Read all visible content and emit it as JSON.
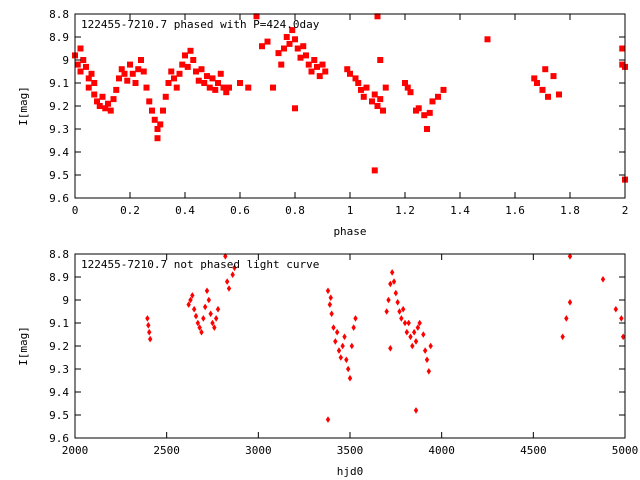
{
  "chart_data": [
    {
      "type": "scatter",
      "title": "122455-7210.7 phased with P=424.0day",
      "xlabel": "phase",
      "ylabel": "I[mag]",
      "xlim": [
        0,
        2
      ],
      "ylim": [
        9.6,
        8.8
      ],
      "y_inverted": true,
      "grid": false,
      "point_color": "#ff0000",
      "x_ticks": [
        "0",
        "0.2",
        "0.4",
        "0.6",
        "0.8",
        "1",
        "1.2",
        "1.4",
        "1.6",
        "1.8",
        "2"
      ],
      "x_tick_values": [
        0,
        0.2,
        0.4,
        0.6,
        0.8,
        1.0,
        1.2,
        1.4,
        1.6,
        1.8,
        2.0
      ],
      "y_ticks": [
        "8.8",
        "8.9",
        "9",
        "9.1",
        "9.2",
        "9.3",
        "9.4",
        "9.5",
        "9.6"
      ],
      "y_tick_values": [
        8.8,
        8.9,
        9.0,
        9.1,
        9.2,
        9.3,
        9.4,
        9.5,
        9.6
      ],
      "series": [
        {
          "points": [
            [
              0.0,
              8.98
            ],
            [
              0.01,
              9.02
            ],
            [
              0.02,
              8.95
            ],
            [
              0.02,
              9.05
            ],
            [
              0.03,
              9.0
            ],
            [
              0.04,
              9.03
            ],
            [
              0.05,
              9.08
            ],
            [
              0.05,
              9.12
            ],
            [
              0.06,
              9.06
            ],
            [
              0.07,
              9.15
            ],
            [
              0.07,
              9.1
            ],
            [
              0.08,
              9.18
            ],
            [
              0.09,
              9.2
            ],
            [
              0.1,
              9.16
            ],
            [
              0.11,
              9.21
            ],
            [
              0.12,
              9.19
            ],
            [
              0.13,
              9.22
            ],
            [
              0.14,
              9.17
            ],
            [
              0.15,
              9.13
            ],
            [
              0.16,
              9.08
            ],
            [
              0.17,
              9.04
            ],
            [
              0.18,
              9.06
            ],
            [
              0.19,
              9.09
            ],
            [
              0.2,
              9.02
            ],
            [
              0.21,
              9.06
            ],
            [
              0.22,
              9.1
            ],
            [
              0.23,
              9.04
            ],
            [
              0.24,
              9.0
            ],
            [
              0.25,
              9.05
            ],
            [
              0.26,
              9.12
            ],
            [
              0.27,
              9.18
            ],
            [
              0.28,
              9.22
            ],
            [
              0.29,
              9.26
            ],
            [
              0.3,
              9.3
            ],
            [
              0.3,
              9.34
            ],
            [
              0.31,
              9.28
            ],
            [
              0.32,
              9.22
            ],
            [
              0.33,
              9.16
            ],
            [
              0.34,
              9.1
            ],
            [
              0.35,
              9.05
            ],
            [
              0.36,
              9.08
            ],
            [
              0.37,
              9.12
            ],
            [
              0.38,
              9.06
            ],
            [
              0.39,
              9.02
            ],
            [
              0.4,
              8.98
            ],
            [
              0.41,
              9.03
            ],
            [
              0.42,
              8.96
            ],
            [
              0.43,
              9.0
            ],
            [
              0.44,
              9.05
            ],
            [
              0.45,
              9.09
            ],
            [
              0.46,
              9.04
            ],
            [
              0.47,
              9.1
            ],
            [
              0.48,
              9.07
            ],
            [
              0.49,
              9.12
            ],
            [
              0.5,
              9.08
            ],
            [
              0.51,
              9.13
            ],
            [
              0.52,
              9.1
            ],
            [
              0.53,
              9.06
            ],
            [
              0.54,
              9.12
            ],
            [
              0.55,
              9.14
            ],
            [
              0.56,
              9.12
            ],
            [
              0.6,
              9.1
            ],
            [
              0.63,
              9.12
            ],
            [
              0.66,
              8.81
            ],
            [
              0.68,
              8.94
            ],
            [
              0.7,
              8.92
            ],
            [
              0.72,
              9.12
            ],
            [
              0.74,
              8.97
            ],
            [
              0.75,
              9.02
            ],
            [
              0.76,
              8.95
            ],
            [
              0.77,
              8.9
            ],
            [
              0.78,
              8.93
            ],
            [
              0.79,
              8.87
            ],
            [
              0.8,
              8.91
            ],
            [
              0.81,
              8.95
            ],
            [
              0.82,
              8.99
            ],
            [
              0.83,
              8.94
            ],
            [
              0.84,
              8.98
            ],
            [
              0.85,
              9.02
            ],
            [
              0.86,
              9.05
            ],
            [
              0.87,
              9.0
            ],
            [
              0.88,
              9.03
            ],
            [
              0.89,
              9.07
            ],
            [
              0.9,
              9.02
            ],
            [
              0.91,
              9.05
            ],
            [
              0.8,
              9.21
            ],
            [
              0.99,
              9.04
            ],
            [
              1.0,
              9.06
            ],
            [
              1.02,
              9.08
            ],
            [
              1.03,
              9.1
            ],
            [
              1.04,
              9.13
            ],
            [
              1.05,
              9.16
            ],
            [
              1.06,
              9.12
            ],
            [
              1.08,
              9.18
            ],
            [
              1.09,
              9.15
            ],
            [
              1.1,
              9.2
            ],
            [
              1.11,
              9.17
            ],
            [
              1.12,
              9.22
            ],
            [
              1.1,
              8.81
            ],
            [
              1.11,
              9.0
            ],
            [
              1.09,
              9.48
            ],
            [
              1.13,
              9.12
            ],
            [
              1.2,
              9.1
            ],
            [
              1.21,
              9.12
            ],
            [
              1.22,
              9.14
            ],
            [
              1.24,
              9.22
            ],
            [
              1.25,
              9.21
            ],
            [
              1.27,
              9.24
            ],
            [
              1.28,
              9.3
            ],
            [
              1.29,
              9.23
            ],
            [
              1.3,
              9.18
            ],
            [
              1.32,
              9.16
            ],
            [
              1.34,
              9.13
            ],
            [
              1.5,
              8.91
            ],
            [
              1.67,
              9.08
            ],
            [
              1.68,
              9.1
            ],
            [
              1.7,
              9.13
            ],
            [
              1.71,
              9.04
            ],
            [
              1.72,
              9.16
            ],
            [
              1.74,
              9.07
            ],
            [
              1.76,
              9.15
            ],
            [
              1.99,
              9.02
            ],
            [
              1.99,
              8.95
            ],
            [
              2.0,
              9.03
            ],
            [
              2.0,
              9.52
            ]
          ]
        }
      ]
    },
    {
      "type": "scatter",
      "title": "122455-7210.7 not phased light curve",
      "xlabel": "hjd0",
      "ylabel": "I[mag]",
      "xlim": [
        2000,
        5000
      ],
      "ylim": [
        9.6,
        8.8
      ],
      "y_inverted": true,
      "grid": false,
      "point_color": "#ff0000",
      "x_ticks": [
        "2000",
        "2500",
        "3000",
        "3500",
        "4000",
        "4500",
        "5000"
      ],
      "x_tick_values": [
        2000,
        2500,
        3000,
        3500,
        4000,
        4500,
        5000
      ],
      "y_ticks": [
        "8.8",
        "8.9",
        "9",
        "9.1",
        "9.2",
        "9.3",
        "9.4",
        "9.5",
        "9.6"
      ],
      "y_tick_values": [
        8.8,
        8.9,
        9.0,
        9.1,
        9.2,
        9.3,
        9.4,
        9.5,
        9.6
      ],
      "series": [
        {
          "points": [
            [
              2395,
              9.08
            ],
            [
              2400,
              9.11
            ],
            [
              2405,
              9.14
            ],
            [
              2410,
              9.17
            ],
            [
              2620,
              9.02
            ],
            [
              2630,
              9.0
            ],
            [
              2640,
              8.98
            ],
            [
              2650,
              9.04
            ],
            [
              2660,
              9.07
            ],
            [
              2670,
              9.1
            ],
            [
              2680,
              9.12
            ],
            [
              2690,
              9.14
            ],
            [
              2700,
              9.08
            ],
            [
              2710,
              9.03
            ],
            [
              2720,
              8.96
            ],
            [
              2730,
              9.0
            ],
            [
              2740,
              9.06
            ],
            [
              2750,
              9.1
            ],
            [
              2760,
              9.12
            ],
            [
              2770,
              9.08
            ],
            [
              2780,
              9.04
            ],
            [
              2820,
              8.81
            ],
            [
              2830,
              8.92
            ],
            [
              2840,
              8.95
            ],
            [
              2860,
              8.89
            ],
            [
              2870,
              8.86
            ],
            [
              3380,
              8.96
            ],
            [
              3390,
              9.02
            ],
            [
              3395,
              8.99
            ],
            [
              3400,
              9.06
            ],
            [
              3410,
              9.12
            ],
            [
              3420,
              9.18
            ],
            [
              3430,
              9.14
            ],
            [
              3440,
              9.22
            ],
            [
              3450,
              9.25
            ],
            [
              3460,
              9.2
            ],
            [
              3470,
              9.16
            ],
            [
              3480,
              9.26
            ],
            [
              3490,
              9.3
            ],
            [
              3500,
              9.34
            ],
            [
              3510,
              9.2
            ],
            [
              3520,
              9.12
            ],
            [
              3530,
              9.08
            ],
            [
              3380,
              9.52
            ],
            [
              3700,
              9.05
            ],
            [
              3710,
              9.0
            ],
            [
              3720,
              8.93
            ],
            [
              3730,
              8.88
            ],
            [
              3740,
              8.92
            ],
            [
              3750,
              8.97
            ],
            [
              3760,
              9.01
            ],
            [
              3770,
              9.05
            ],
            [
              3780,
              9.08
            ],
            [
              3790,
              9.04
            ],
            [
              3800,
              9.1
            ],
            [
              3810,
              9.14
            ],
            [
              3820,
              9.1
            ],
            [
              3830,
              9.16
            ],
            [
              3840,
              9.2
            ],
            [
              3850,
              9.14
            ],
            [
              3860,
              9.18
            ],
            [
              3870,
              9.12
            ],
            [
              3880,
              9.1
            ],
            [
              3900,
              9.15
            ],
            [
              3910,
              9.22
            ],
            [
              3920,
              9.26
            ],
            [
              3930,
              9.31
            ],
            [
              3940,
              9.2
            ],
            [
              3720,
              9.21
            ],
            [
              3860,
              9.48
            ],
            [
              4660,
              9.16
            ],
            [
              4680,
              9.08
            ],
            [
              4700,
              9.01
            ],
            [
              4700,
              8.81
            ],
            [
              4880,
              8.91
            ],
            [
              4950,
              9.04
            ],
            [
              4980,
              9.08
            ],
            [
              4990,
              9.16
            ]
          ]
        }
      ]
    }
  ]
}
